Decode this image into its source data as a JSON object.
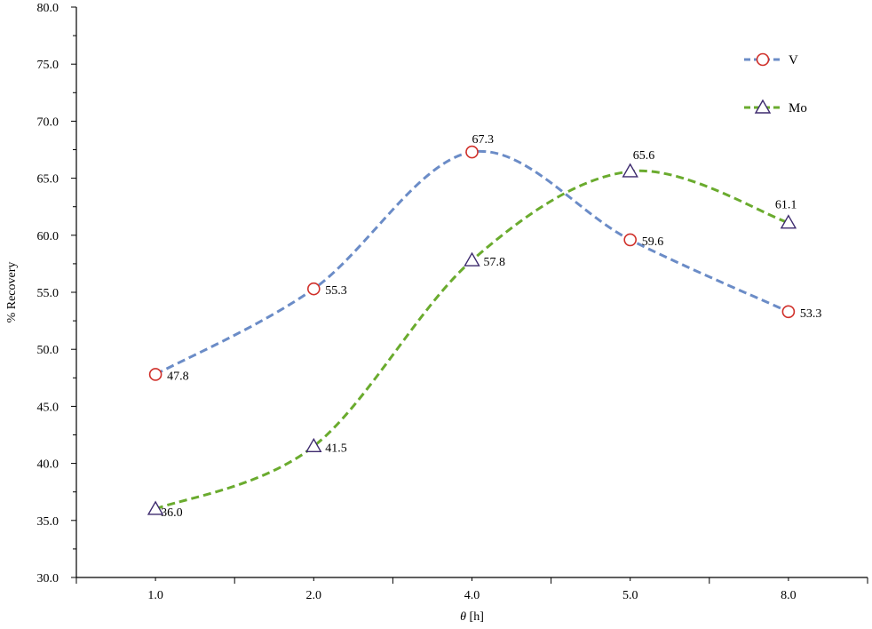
{
  "chart_data": {
    "type": "line",
    "xlabel_var": "θ",
    "xlabel_unit": " [h]",
    "ylabel": "% Recovery",
    "categories": [
      "1.0",
      "2.0",
      "4.0",
      "5.0",
      "8.0"
    ],
    "ylim": [
      30.0,
      80.0
    ],
    "ytick_step": 5,
    "y_ticks": [
      "30.0",
      "35.0",
      "40.0",
      "45.0",
      "50.0",
      "55.0",
      "60.0",
      "65.0",
      "70.0",
      "75.0",
      "80.0"
    ],
    "grid": false,
    "legend_position": "top-right",
    "series": [
      {
        "name": "V",
        "values": [
          47.8,
          55.3,
          67.3,
          59.6,
          53.3
        ],
        "labels": [
          "47.8",
          "55.3",
          "67.3",
          "59.6",
          "53.3"
        ],
        "color": "#6b8cc7",
        "marker": "circle",
        "marker_color": "#d0302a"
      },
      {
        "name": "Mo",
        "values": [
          36.0,
          41.5,
          57.8,
          65.6,
          61.1
        ],
        "labels": [
          "36.0",
          "41.5",
          "57.8",
          "65.6",
          "61.1"
        ],
        "color": "#6aab2e",
        "marker": "triangle",
        "marker_color": "#3d2a6e"
      }
    ]
  }
}
